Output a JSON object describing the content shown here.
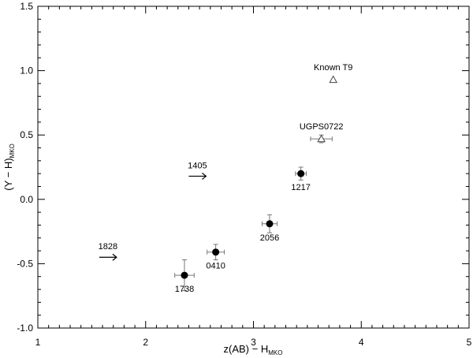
{
  "chart_data": {
    "type": "scatter",
    "xlabel": {
      "main": "z(AB) − H",
      "sub": "MKO"
    },
    "ylabel": {
      "main": "(Y − H)",
      "sub": "MKO"
    },
    "xlim": [
      1,
      5
    ],
    "ylim": [
      -1.0,
      1.5
    ],
    "xticks": [
      1,
      2,
      3,
      4,
      5
    ],
    "xtick_labels": [
      "1",
      "2",
      "3",
      "4",
      "5"
    ],
    "yticks": [
      -1.0,
      -0.5,
      0.0,
      0.5,
      1.0,
      1.5
    ],
    "ytick_labels": [
      "-1.0",
      "-0.5",
      "0.0",
      "0.5",
      "1.0",
      "1.5"
    ],
    "grid": false,
    "points": [
      {
        "label": "1738",
        "x": 2.36,
        "y": -0.59,
        "xerr": 0.09,
        "yerr": 0.12,
        "marker": "filled-circle",
        "label_pos": "below"
      },
      {
        "label": "0410",
        "x": 2.65,
        "y": -0.41,
        "xerr": 0.08,
        "yerr": 0.06,
        "marker": "filled-circle",
        "label_pos": "below"
      },
      {
        "label": "2056",
        "x": 3.15,
        "y": -0.19,
        "xerr": 0.07,
        "yerr": 0.07,
        "marker": "filled-circle",
        "label_pos": "below"
      },
      {
        "label": "1217",
        "x": 3.44,
        "y": 0.2,
        "xerr": 0.05,
        "yerr": 0.05,
        "marker": "filled-circle",
        "label_pos": "below"
      },
      {
        "label": "UGPS0722",
        "x": 3.63,
        "y": 0.47,
        "xerr": 0.1,
        "yerr": 0.03,
        "marker": "open-triangle",
        "label_pos": "above"
      },
      {
        "label": "Known T9",
        "x": 3.74,
        "y": 0.93,
        "xerr": 0,
        "yerr": 0,
        "marker": "open-triangle",
        "label_pos": "above"
      }
    ],
    "lower_limits": [
      {
        "label": "1828",
        "x": 1.65,
        "y": -0.45,
        "direction": "right"
      },
      {
        "label": "1405",
        "x": 2.48,
        "y": 0.18,
        "direction": "right"
      }
    ]
  }
}
